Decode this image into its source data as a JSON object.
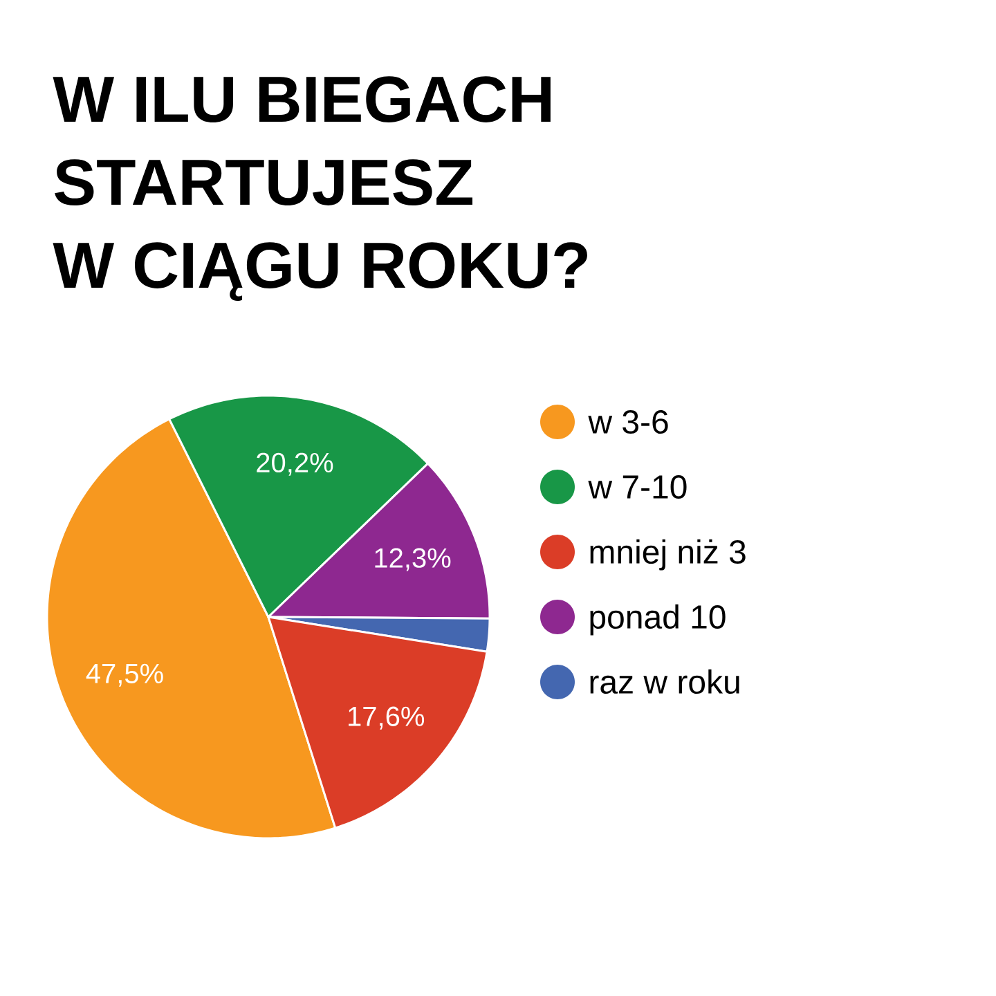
{
  "chart_data": {
    "type": "pie",
    "title": "W ILU BIEGACH STARTUJESZ W CIĄGU ROKU?",
    "categories": [
      "w 3-6",
      "w 7-10",
      "mniej niż 3",
      "ponad 10",
      "raz w roku"
    ],
    "values": [
      47.5,
      20.2,
      17.6,
      12.3,
      2.4
    ],
    "colors": [
      "#f7981f",
      "#189747",
      "#db3d27",
      "#8e2890",
      "#4467b0"
    ],
    "value_labels": [
      "47,5%",
      "20,2%",
      "17,6%",
      "12,3%",
      null
    ],
    "legend": "right"
  }
}
